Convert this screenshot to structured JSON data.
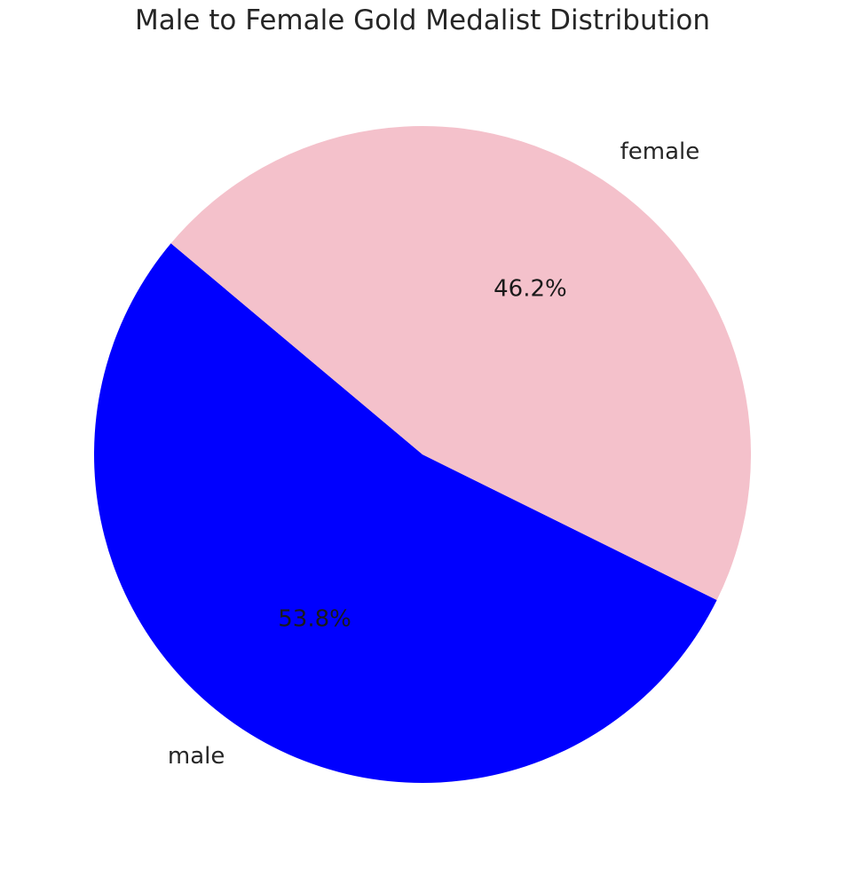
{
  "chart_data": {
    "type": "pie",
    "title": "Male to Female Gold Medalist Distribution",
    "slices": [
      {
        "label": "male",
        "value": 53.8,
        "pct_label": "53.8%",
        "color": "#0000ff"
      },
      {
        "label": "female",
        "value": 46.2,
        "pct_label": "46.2%",
        "color": "#f4c1cb"
      }
    ],
    "start_angle_deg": 140,
    "counterclockwise": true
  }
}
